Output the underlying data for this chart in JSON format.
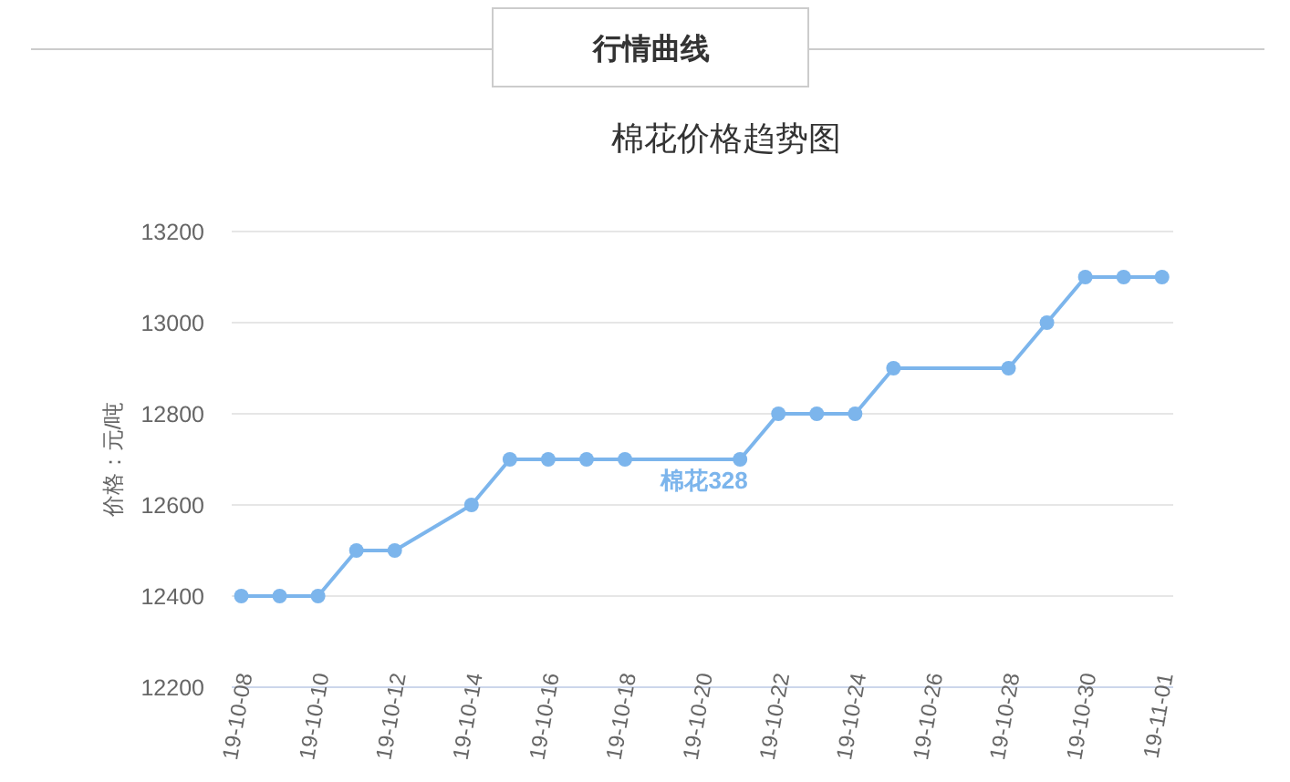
{
  "chart_data": {
    "type": "line",
    "title": "行情曲线",
    "subtitle": "棉花价格趋势图",
    "ylabel": "价格：元/吨",
    "x": [
      "--10-08",
      "--10-09",
      "--10-10",
      "--10-11",
      "--10-12",
      "--10-14",
      "--10-15",
      "--10-16",
      "--10-17",
      "--10-18",
      "--10-21",
      "--10-22",
      "--10-23",
      "--10-24",
      "--10-25",
      "--10-28",
      "--10-29",
      "--10-30",
      "--10-31",
      "--11-01"
    ],
    "series": [
      {
        "name": "棉花328",
        "color": "#7cb5ec",
        "values": [
          12400,
          12400,
          12400,
          12500,
          12500,
          12600,
          12700,
          12700,
          12700,
          12700,
          12700,
          12800,
          12800,
          12800,
          12900,
          12900,
          13000,
          13100,
          13100,
          13100
        ]
      }
    ],
    "xlim": [
      "--10-07T18:00",
      "--11-01T07:00"
    ],
    "xticks": [
      {
        "value": "--10-08",
        "label": "19-10-08"
      },
      {
        "value": "--10-10",
        "label": "19-10-10"
      },
      {
        "value": "--10-12",
        "label": "19-10-12"
      },
      {
        "value": "--10-14",
        "label": "19-10-14"
      },
      {
        "value": "--10-16",
        "label": "19-10-16"
      },
      {
        "value": "--10-18",
        "label": "19-10-18"
      },
      {
        "value": "--10-20",
        "label": "19-10-20"
      },
      {
        "value": "--10-22",
        "label": "19-10-22"
      },
      {
        "value": "--10-24",
        "label": "19-10-24"
      },
      {
        "value": "--10-26",
        "label": "19-10-26"
      },
      {
        "value": "--10-28",
        "label": "19-10-28"
      },
      {
        "value": "--10-30",
        "label": "19-10-30"
      },
      {
        "value": "--11-01",
        "label": "19-11-01"
      }
    ],
    "ylim": [
      12200,
      13200
    ],
    "yticks": [
      12200,
      12400,
      12600,
      12800,
      13000,
      13200
    ],
    "grid": "y",
    "marker": "circle",
    "line_style": "solid"
  }
}
